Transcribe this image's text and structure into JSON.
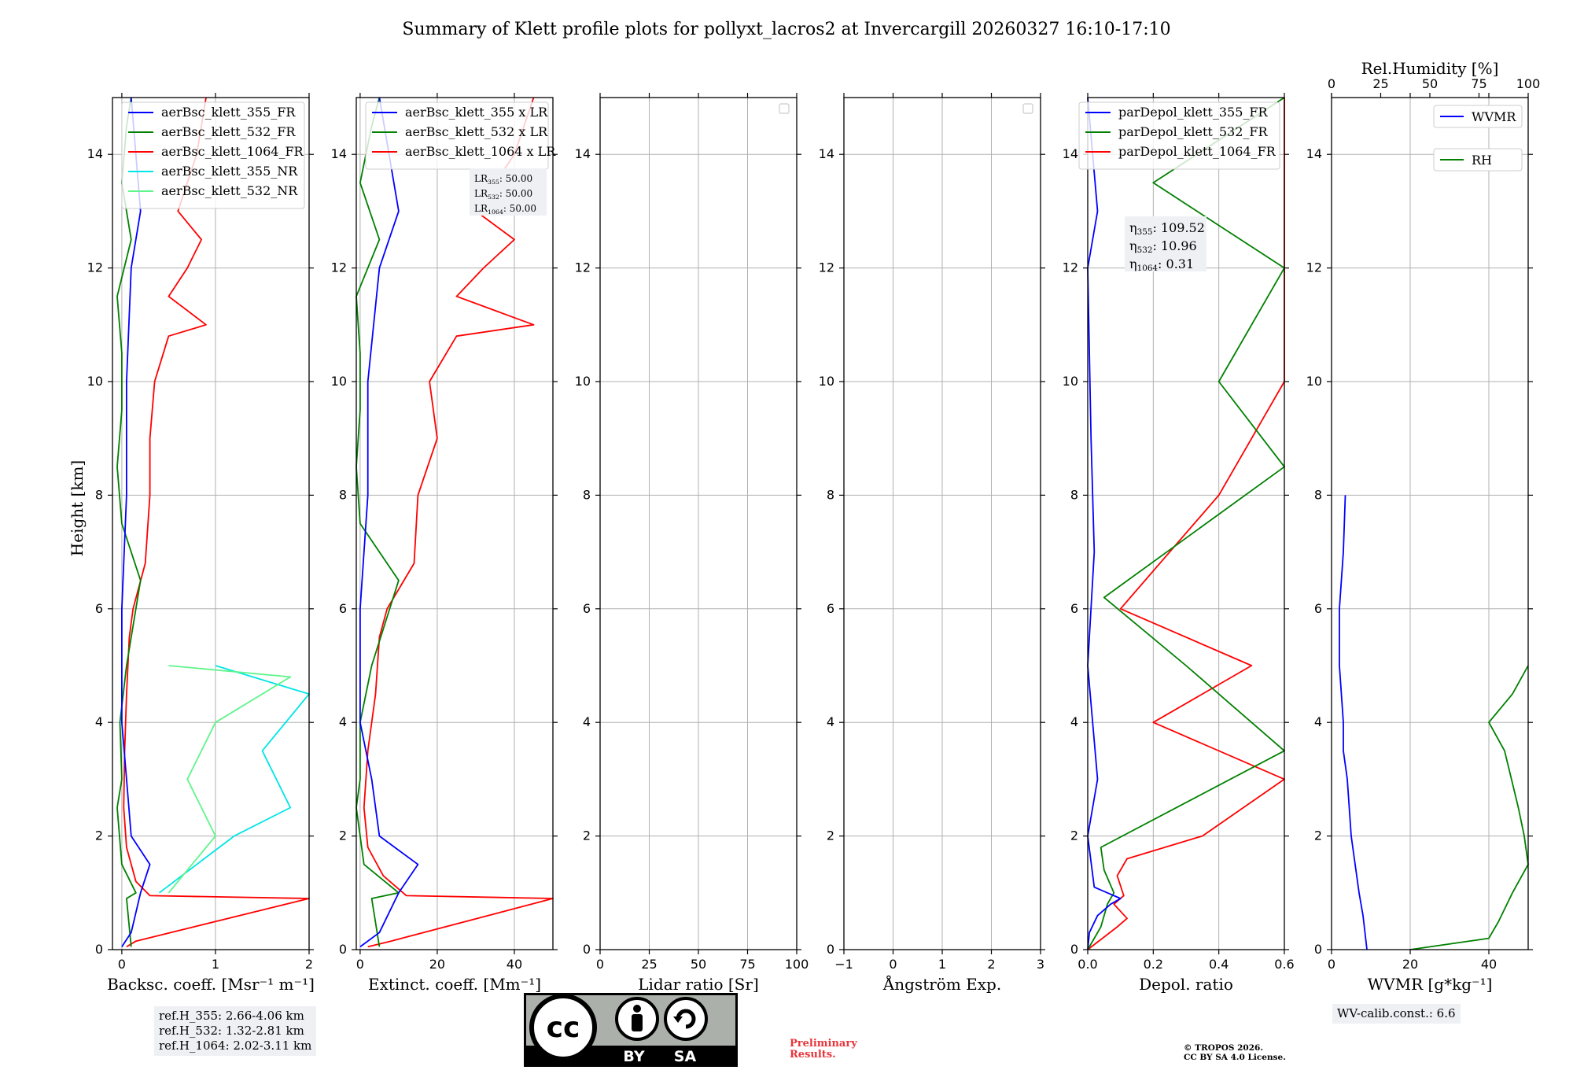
{
  "title": "Summary of Klett profile plots for pollyxt_lacros2 at Invercargill 20260327 16:10-17:10",
  "ylabel": "Height [km]",
  "colors": {
    "c355": "#0000ff",
    "c532": "#008000",
    "c1064": "#ff0000",
    "c355nr": "#00e5e5",
    "c532nr": "#5ef58a",
    "grid": "#b0b0b0"
  },
  "chart_data": [
    {
      "id": "backscatter",
      "type": "line",
      "xlabel": "Backsc. coeff. [Msr⁻¹ m⁻¹]",
      "xlim": [
        -0.1,
        2
      ],
      "ylim": [
        0,
        15
      ],
      "xticks": [
        0,
        1,
        2
      ],
      "xtick_labels": [
        "0",
        "1",
        "2"
      ],
      "yticks": [
        0,
        2,
        4,
        6,
        8,
        10,
        12,
        14
      ],
      "legend": {
        "placement": "top-right",
        "entries": [
          "aerBsc_klett_355_FR",
          "aerBsc_klett_532_FR",
          "aerBsc_klett_1064_FR",
          "aerBsc_klett_355_NR",
          "aerBsc_klett_532_NR"
        ]
      },
      "series": [
        {
          "name": "aerBsc_klett_1064_FR",
          "color": "c1064",
          "points": [
            [
              0.05,
              0.05
            ],
            [
              0.15,
              0.15
            ],
            [
              2.0,
              0.9
            ],
            [
              0.3,
              0.95
            ],
            [
              0.15,
              1.2
            ],
            [
              0.05,
              1.8
            ],
            [
              0.02,
              2.5
            ],
            [
              0.03,
              3.5
            ],
            [
              0.05,
              4.5
            ],
            [
              0.08,
              5.5
            ],
            [
              0.12,
              6.0
            ],
            [
              0.25,
              6.8
            ],
            [
              0.3,
              8.0
            ],
            [
              0.3,
              9.0
            ],
            [
              0.35,
              10.0
            ],
            [
              0.5,
              10.8
            ],
            [
              0.9,
              11.0
            ],
            [
              0.5,
              11.5
            ],
            [
              0.7,
              12.0
            ],
            [
              0.85,
              12.5
            ],
            [
              0.6,
              13.0
            ],
            [
              0.8,
              14.0
            ],
            [
              0.9,
              15.0
            ]
          ]
        },
        {
          "name": "aerBsc_klett_532_FR",
          "color": "c532",
          "points": [
            [
              0.1,
              0.05
            ],
            [
              0.05,
              0.9
            ],
            [
              0.15,
              1.0
            ],
            [
              0.0,
              1.5
            ],
            [
              -0.05,
              2.5
            ],
            [
              0.0,
              3.0
            ],
            [
              -0.02,
              4.0
            ],
            [
              0.05,
              5.0
            ],
            [
              0.2,
              6.5
            ],
            [
              0.0,
              7.5
            ],
            [
              -0.05,
              8.5
            ],
            [
              0.0,
              9.5
            ],
            [
              0.0,
              10.5
            ],
            [
              -0.05,
              11.5
            ],
            [
              0.1,
              12.5
            ],
            [
              0.0,
              13.5
            ],
            [
              0.05,
              14.5
            ],
            [
              0.1,
              15.0
            ]
          ]
        },
        {
          "name": "aerBsc_klett_355_FR",
          "color": "c355",
          "points": [
            [
              0.0,
              0.05
            ],
            [
              0.1,
              0.3
            ],
            [
              0.2,
              1.0
            ],
            [
              0.3,
              1.5
            ],
            [
              0.1,
              2.0
            ],
            [
              0.05,
              3.0
            ],
            [
              0.0,
              4.0
            ],
            [
              0.0,
              6.0
            ],
            [
              0.05,
              8.0
            ],
            [
              0.05,
              10.0
            ],
            [
              0.1,
              12.0
            ],
            [
              0.2,
              13.0
            ],
            [
              0.1,
              15.0
            ]
          ]
        },
        {
          "name": "aerBsc_klett_355_NR",
          "color": "c355nr",
          "points": [
            [
              0.4,
              1.0
            ],
            [
              1.2,
              2.0
            ],
            [
              1.8,
              2.5
            ],
            [
              1.5,
              3.5
            ],
            [
              2.0,
              4.5
            ],
            [
              1.0,
              5.0
            ]
          ]
        },
        {
          "name": "aerBsc_klett_532_NR",
          "color": "c532nr",
          "points": [
            [
              0.5,
              1.0
            ],
            [
              1.0,
              2.0
            ],
            [
              0.7,
              3.0
            ],
            [
              1.0,
              4.0
            ],
            [
              1.8,
              4.8
            ],
            [
              0.5,
              5.0
            ]
          ]
        }
      ]
    },
    {
      "id": "extinction",
      "type": "line",
      "xlabel": "Extinct. coeff. [Mm⁻¹]",
      "xlim": [
        -1,
        50
      ],
      "ylim": [
        0,
        15
      ],
      "xticks": [
        0,
        20,
        40
      ],
      "xtick_labels": [
        "0",
        "20",
        "40"
      ],
      "yticks": [
        0,
        2,
        4,
        6,
        8,
        10,
        12,
        14
      ],
      "legend": {
        "placement": "top-right",
        "entries": [
          "aerBsc_klett_355 x LR",
          "aerBsc_klett_532 x LR",
          "aerBsc_klett_1064 x LR"
        ]
      },
      "annotation": {
        "lines": [
          {
            "sym": "LR",
            "sub": "355",
            "val": ": 50.00"
          },
          {
            "sym": "LR",
            "sub": "532",
            "val": ": 50.00"
          },
          {
            "sym": "LR",
            "sub": "1064",
            "val": ": 50.00"
          }
        ]
      },
      "series": [
        {
          "name": "aerBsc_klett_1064 x LR",
          "color": "c1064",
          "points": [
            [
              2,
              0.05
            ],
            [
              8,
              0.15
            ],
            [
              50,
              0.9
            ],
            [
              12,
              0.95
            ],
            [
              6,
              1.3
            ],
            [
              2,
              1.8
            ],
            [
              1,
              2.5
            ],
            [
              2,
              3.5
            ],
            [
              4,
              4.5
            ],
            [
              5,
              5.5
            ],
            [
              7,
              6.0
            ],
            [
              14,
              6.8
            ],
            [
              15,
              8.0
            ],
            [
              20,
              9.0
            ],
            [
              18,
              10.0
            ],
            [
              25,
              10.8
            ],
            [
              45,
              11.0
            ],
            [
              25,
              11.5
            ],
            [
              32,
              12.0
            ],
            [
              40,
              12.5
            ],
            [
              30,
              13.0
            ],
            [
              40,
              14.0
            ],
            [
              45,
              15.0
            ]
          ]
        },
        {
          "name": "aerBsc_klett_532 x LR",
          "color": "c532",
          "points": [
            [
              5,
              0.05
            ],
            [
              3,
              0.9
            ],
            [
              10,
              1.0
            ],
            [
              1,
              1.5
            ],
            [
              -1,
              2.5
            ],
            [
              0,
              3.0
            ],
            [
              0,
              4.0
            ],
            [
              3,
              5.0
            ],
            [
              10,
              6.5
            ],
            [
              0,
              7.5
            ],
            [
              -1,
              8.5
            ],
            [
              0,
              9.5
            ],
            [
              0,
              10.5
            ],
            [
              -1,
              11.5
            ],
            [
              5,
              12.5
            ],
            [
              0,
              13.5
            ],
            [
              3,
              14.5
            ],
            [
              5,
              15.0
            ]
          ]
        },
        {
          "name": "aerBsc_klett_355 x LR",
          "color": "c355",
          "points": [
            [
              0,
              0.05
            ],
            [
              5,
              0.3
            ],
            [
              10,
              1.0
            ],
            [
              15,
              1.5
            ],
            [
              5,
              2.0
            ],
            [
              3,
              3.0
            ],
            [
              0,
              4.0
            ],
            [
              0,
              6.0
            ],
            [
              2,
              8.0
            ],
            [
              2,
              10.0
            ],
            [
              5,
              12.0
            ],
            [
              10,
              13.0
            ],
            [
              5,
              15.0
            ]
          ]
        }
      ]
    },
    {
      "id": "lidar_ratio",
      "type": "line",
      "xlabel": "Lidar ratio [Sr]",
      "xlim": [
        0,
        100
      ],
      "ylim": [
        0,
        15
      ],
      "xticks": [
        0,
        25,
        50,
        75,
        100
      ],
      "xtick_labels": [
        "0",
        "25",
        "50",
        "75",
        "100"
      ],
      "yticks": [
        0,
        2,
        4,
        6,
        8,
        10,
        12,
        14
      ],
      "series": []
    },
    {
      "id": "angstrom",
      "type": "line",
      "xlabel": "Ångström Exp.",
      "xlim": [
        -1,
        3
      ],
      "ylim": [
        0,
        15
      ],
      "xticks": [
        -1,
        0,
        1,
        2,
        3
      ],
      "xtick_labels": [
        "−1",
        "0",
        "1",
        "2",
        "3"
      ],
      "yticks": [
        0,
        2,
        4,
        6,
        8,
        10,
        12,
        14
      ],
      "series": []
    },
    {
      "id": "depolarization",
      "type": "line",
      "xlabel": "Depol. ratio",
      "xlim": [
        0,
        0.6
      ],
      "ylim": [
        0,
        15
      ],
      "xticks": [
        0.0,
        0.2,
        0.4,
        0.6
      ],
      "xtick_labels": [
        "0.0",
        "0.2",
        "0.4",
        "0.6"
      ],
      "yticks": [
        0,
        2,
        4,
        6,
        8,
        10,
        12,
        14
      ],
      "legend": {
        "placement": "top-right",
        "entries": [
          "parDepol_klett_355_FR",
          "parDepol_klett_532_FR",
          "parDepol_klett_1064_FR"
        ]
      },
      "annotation": {
        "lines": [
          {
            "sym": "η",
            "sub": "355",
            "val": ": 109.52"
          },
          {
            "sym": "η",
            "sub": "532",
            "val": ": 10.96"
          },
          {
            "sym": "η",
            "sub": "1064",
            "val": ": 0.31"
          }
        ]
      },
      "series": [
        {
          "name": "parDepol_klett_1064_FR",
          "color": "c1064",
          "points": [
            [
              0.0,
              0.0
            ],
            [
              0.09,
              0.4
            ],
            [
              0.12,
              0.55
            ],
            [
              0.08,
              0.8
            ],
            [
              0.11,
              0.95
            ],
            [
              0.09,
              1.3
            ],
            [
              0.12,
              1.6
            ],
            [
              0.35,
              2.0
            ],
            [
              0.6,
              3.0
            ],
            [
              0.2,
              4.0
            ],
            [
              0.5,
              5.0
            ],
            [
              0.1,
              6.0
            ],
            [
              0.4,
              8.0
            ],
            [
              0.6,
              10.0
            ],
            [
              0.6,
              12.0
            ],
            [
              0.6,
              15.0
            ]
          ]
        },
        {
          "name": "parDepol_klett_532_FR",
          "color": "c532",
          "points": [
            [
              0.0,
              0.0
            ],
            [
              0.04,
              0.4
            ],
            [
              0.06,
              0.8
            ],
            [
              0.08,
              1.0
            ],
            [
              0.05,
              1.4
            ],
            [
              0.04,
              1.8
            ],
            [
              0.6,
              3.5
            ],
            [
              0.3,
              5.0
            ],
            [
              0.05,
              6.2
            ],
            [
              0.6,
              8.5
            ],
            [
              0.4,
              10.0
            ],
            [
              0.6,
              12.0
            ],
            [
              0.2,
              13.5
            ],
            [
              0.6,
              15.0
            ]
          ]
        },
        {
          "name": "parDepol_klett_355_FR",
          "color": "c355",
          "points": [
            [
              0.0,
              0.0
            ],
            [
              0.005,
              0.3
            ],
            [
              0.03,
              0.6
            ],
            [
              0.07,
              0.8
            ],
            [
              0.1,
              0.9
            ],
            [
              0.02,
              1.1
            ],
            [
              0.0,
              2.0
            ],
            [
              0.03,
              3.0
            ],
            [
              0.0,
              5.0
            ],
            [
              0.02,
              7.0
            ],
            [
              0.01,
              9.0
            ],
            [
              0.0,
              12.0
            ],
            [
              0.03,
              13.0
            ],
            [
              0.0,
              15.0
            ]
          ]
        }
      ]
    },
    {
      "id": "wvmr_rh",
      "type": "line",
      "xlabel": "WVMR [g*kg⁻¹]",
      "xlim": [
        0,
        50
      ],
      "ylim": [
        0,
        15
      ],
      "xticks": [
        0,
        20,
        40
      ],
      "xtick_labels": [
        "0",
        "20",
        "40"
      ],
      "yticks": [
        0,
        2,
        4,
        6,
        8,
        10,
        12,
        14
      ],
      "top_axis": {
        "label": "Rel.Humidity [%]",
        "xlim": [
          0,
          100
        ],
        "xticks": [
          0,
          25,
          50,
          75,
          100
        ],
        "xtick_labels": [
          "0",
          "25",
          "50",
          "75",
          "100"
        ]
      },
      "legend": {
        "placement": "top-right",
        "entries": [
          "WVMR",
          "RH"
        ]
      },
      "series": [
        {
          "name": "WVMR",
          "color": "c355",
          "axis": "bottom",
          "points": [
            [
              9,
              0.0
            ],
            [
              8.5,
              0.3
            ],
            [
              8,
              0.6
            ],
            [
              7,
              1.0
            ],
            [
              6,
              1.5
            ],
            [
              5,
              2.0
            ],
            [
              4,
              3.0
            ],
            [
              3,
              3.5
            ],
            [
              3,
              4.0
            ],
            [
              2,
              5.0
            ],
            [
              2,
              6.0
            ],
            [
              3,
              7.0
            ],
            [
              3.5,
              8.0
            ]
          ]
        },
        {
          "name": "RH",
          "color": "c532",
          "axis": "top",
          "points": [
            [
              40,
              0.0
            ],
            [
              80,
              0.2
            ],
            [
              85,
              0.5
            ],
            [
              92,
              1.0
            ],
            [
              100,
              1.5
            ],
            [
              98,
              2.0
            ],
            [
              95,
              2.5
            ],
            [
              88,
              3.5
            ],
            [
              80,
              4.0
            ],
            [
              92,
              4.5
            ],
            [
              100,
              5.0
            ]
          ]
        }
      ]
    }
  ],
  "ref_box": [
    "ref.H_355: 2.66-4.06 km",
    "ref.H_532: 1.32-2.81 km",
    "ref.H_1064: 2.02-3.11 km"
  ],
  "wv_calib": "WV-calib.const.: 6.6",
  "cc_badge": {
    "by": "BY",
    "sa": "SA"
  },
  "prelim": [
    "Preliminary",
    "Results."
  ],
  "tropos": [
    "© TROPOS 2026.",
    "CC BY SA 4.0 License."
  ]
}
